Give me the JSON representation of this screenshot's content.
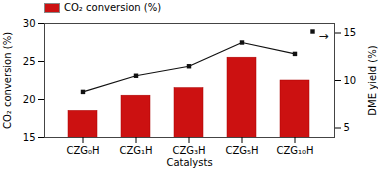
{
  "chart_data": {
    "type": "bar",
    "categories": [
      "CZG₀H",
      "CZG₁H",
      "CZG₃H",
      "CZG₅H",
      "CZG₁₀H"
    ],
    "xlabel": "Catalysts",
    "ylabel": "CO₂ conversion (%)",
    "y2label": "DME yield (%)",
    "series": [
      {
        "name": "CO₂ conversion (%)",
        "type": "bar",
        "color": "#cc1111",
        "values": [
          18.5,
          20.5,
          21.5,
          25.5,
          22.5
        ]
      },
      {
        "type": "line",
        "axis": "y2",
        "color": "#111111",
        "marker": "square",
        "values": [
          8.8,
          10.5,
          11.5,
          14.0,
          12.8
        ]
      }
    ],
    "ylim": [
      15,
      30
    ],
    "yticks": [
      15,
      20,
      25,
      30
    ],
    "y2lim": [
      4,
      16
    ],
    "y2ticks": [
      5,
      10,
      15
    ],
    "legend": "upper left",
    "annotations": [
      "→"
    ]
  }
}
